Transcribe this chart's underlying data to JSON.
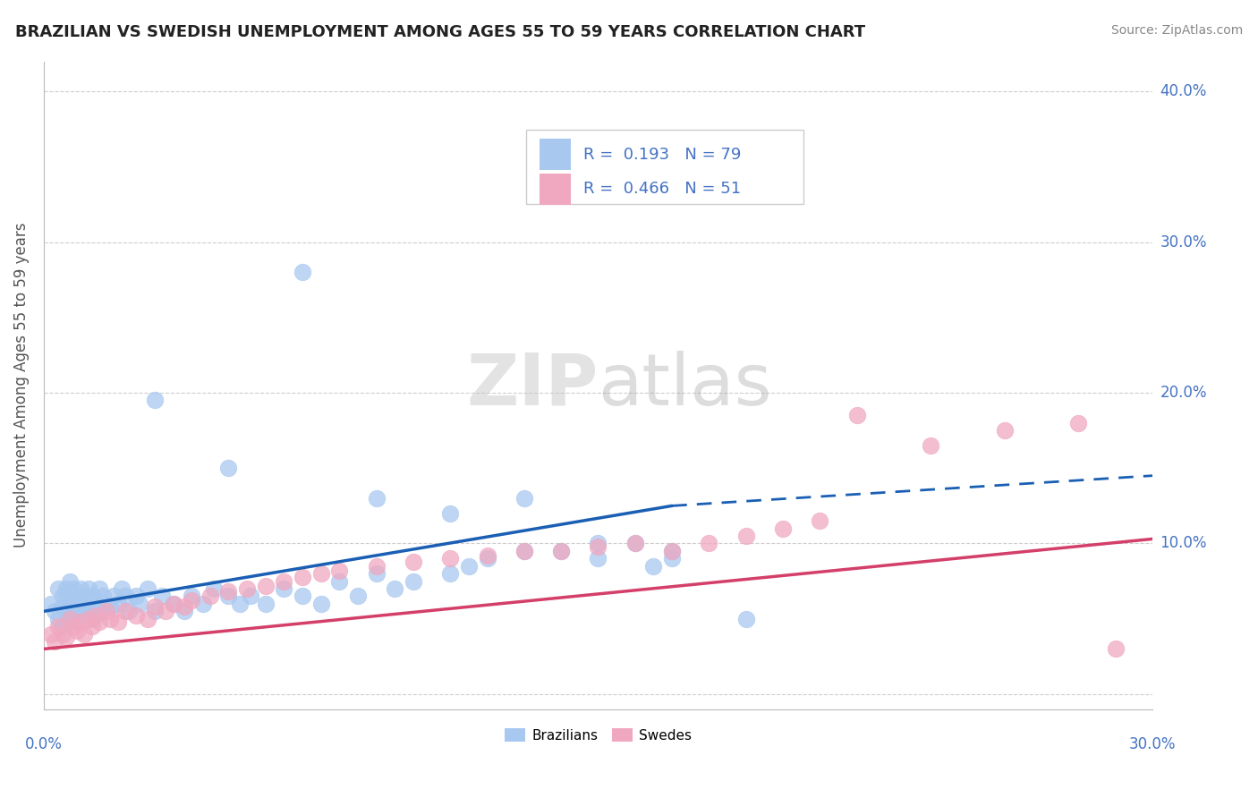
{
  "title": "BRAZILIAN VS SWEDISH UNEMPLOYMENT AMONG AGES 55 TO 59 YEARS CORRELATION CHART",
  "source": "Source: ZipAtlas.com",
  "ylabel": "Unemployment Among Ages 55 to 59 years",
  "xlim": [
    0.0,
    0.3
  ],
  "ylim": [
    -0.01,
    0.42
  ],
  "R_brazil": 0.193,
  "N_brazil": 79,
  "R_sweden": 0.466,
  "N_sweden": 51,
  "brazil_color": "#a8c8f0",
  "sweden_color": "#f0a8c0",
  "brazil_line_color": "#1a5fb4",
  "sweden_line_color": "#d43f6a",
  "background_color": "#ffffff",
  "grid_color": "#c8c8c8",
  "watermark_zip": "ZIP",
  "watermark_atlas": "atlas",
  "legend_label_brazil": "Brazilians",
  "legend_label_sweden": "Swedes",
  "brazil_x": [
    0.002,
    0.003,
    0.004,
    0.004,
    0.005,
    0.005,
    0.005,
    0.006,
    0.006,
    0.006,
    0.007,
    0.007,
    0.007,
    0.008,
    0.008,
    0.008,
    0.009,
    0.009,
    0.009,
    0.01,
    0.01,
    0.01,
    0.011,
    0.011,
    0.012,
    0.012,
    0.013,
    0.013,
    0.014,
    0.015,
    0.015,
    0.016,
    0.017,
    0.018,
    0.019,
    0.02,
    0.021,
    0.022,
    0.023,
    0.025,
    0.026,
    0.028,
    0.03,
    0.032,
    0.035,
    0.038,
    0.04,
    0.043,
    0.046,
    0.05,
    0.053,
    0.056,
    0.06,
    0.065,
    0.07,
    0.075,
    0.08,
    0.085,
    0.09,
    0.095,
    0.1,
    0.11,
    0.115,
    0.12,
    0.13,
    0.14,
    0.15,
    0.16,
    0.165,
    0.17,
    0.03,
    0.05,
    0.07,
    0.09,
    0.11,
    0.13,
    0.15,
    0.17,
    0.19
  ],
  "brazil_y": [
    0.06,
    0.055,
    0.07,
    0.05,
    0.065,
    0.058,
    0.045,
    0.07,
    0.055,
    0.065,
    0.06,
    0.048,
    0.075,
    0.055,
    0.065,
    0.07,
    0.055,
    0.065,
    0.05,
    0.06,
    0.07,
    0.055,
    0.065,
    0.058,
    0.07,
    0.055,
    0.065,
    0.05,
    0.06,
    0.07,
    0.055,
    0.065,
    0.06,
    0.058,
    0.065,
    0.06,
    0.07,
    0.065,
    0.055,
    0.065,
    0.06,
    0.07,
    0.055,
    0.065,
    0.06,
    0.055,
    0.065,
    0.06,
    0.07,
    0.065,
    0.06,
    0.065,
    0.06,
    0.07,
    0.065,
    0.06,
    0.075,
    0.065,
    0.08,
    0.07,
    0.075,
    0.08,
    0.085,
    0.09,
    0.095,
    0.095,
    0.1,
    0.1,
    0.085,
    0.09,
    0.195,
    0.15,
    0.28,
    0.13,
    0.12,
    0.13,
    0.09,
    0.095,
    0.05
  ],
  "sweden_x": [
    0.002,
    0.003,
    0.004,
    0.005,
    0.006,
    0.007,
    0.008,
    0.009,
    0.01,
    0.011,
    0.012,
    0.013,
    0.014,
    0.015,
    0.017,
    0.018,
    0.02,
    0.022,
    0.025,
    0.028,
    0.03,
    0.033,
    0.035,
    0.038,
    0.04,
    0.045,
    0.05,
    0.055,
    0.06,
    0.065,
    0.07,
    0.075,
    0.08,
    0.09,
    0.1,
    0.11,
    0.12,
    0.13,
    0.14,
    0.15,
    0.16,
    0.17,
    0.18,
    0.19,
    0.2,
    0.21,
    0.22,
    0.24,
    0.26,
    0.28,
    0.29
  ],
  "sweden_y": [
    0.04,
    0.035,
    0.045,
    0.04,
    0.038,
    0.05,
    0.045,
    0.042,
    0.048,
    0.04,
    0.05,
    0.045,
    0.052,
    0.048,
    0.055,
    0.05,
    0.048,
    0.055,
    0.052,
    0.05,
    0.058,
    0.055,
    0.06,
    0.058,
    0.062,
    0.065,
    0.068,
    0.07,
    0.072,
    0.075,
    0.078,
    0.08,
    0.082,
    0.085,
    0.088,
    0.09,
    0.092,
    0.095,
    0.095,
    0.098,
    0.1,
    0.095,
    0.1,
    0.105,
    0.11,
    0.115,
    0.185,
    0.165,
    0.175,
    0.18,
    0.03
  ],
  "brazil_line_x_data_end": 0.17,
  "brazil_line_x_dash_start": 0.175,
  "brazil_line_y_start": 0.055,
  "brazil_line_y_end_solid": 0.125,
  "brazil_line_y_end_dash": 0.145,
  "sweden_line_y_start": 0.03,
  "sweden_line_y_end": 0.103
}
